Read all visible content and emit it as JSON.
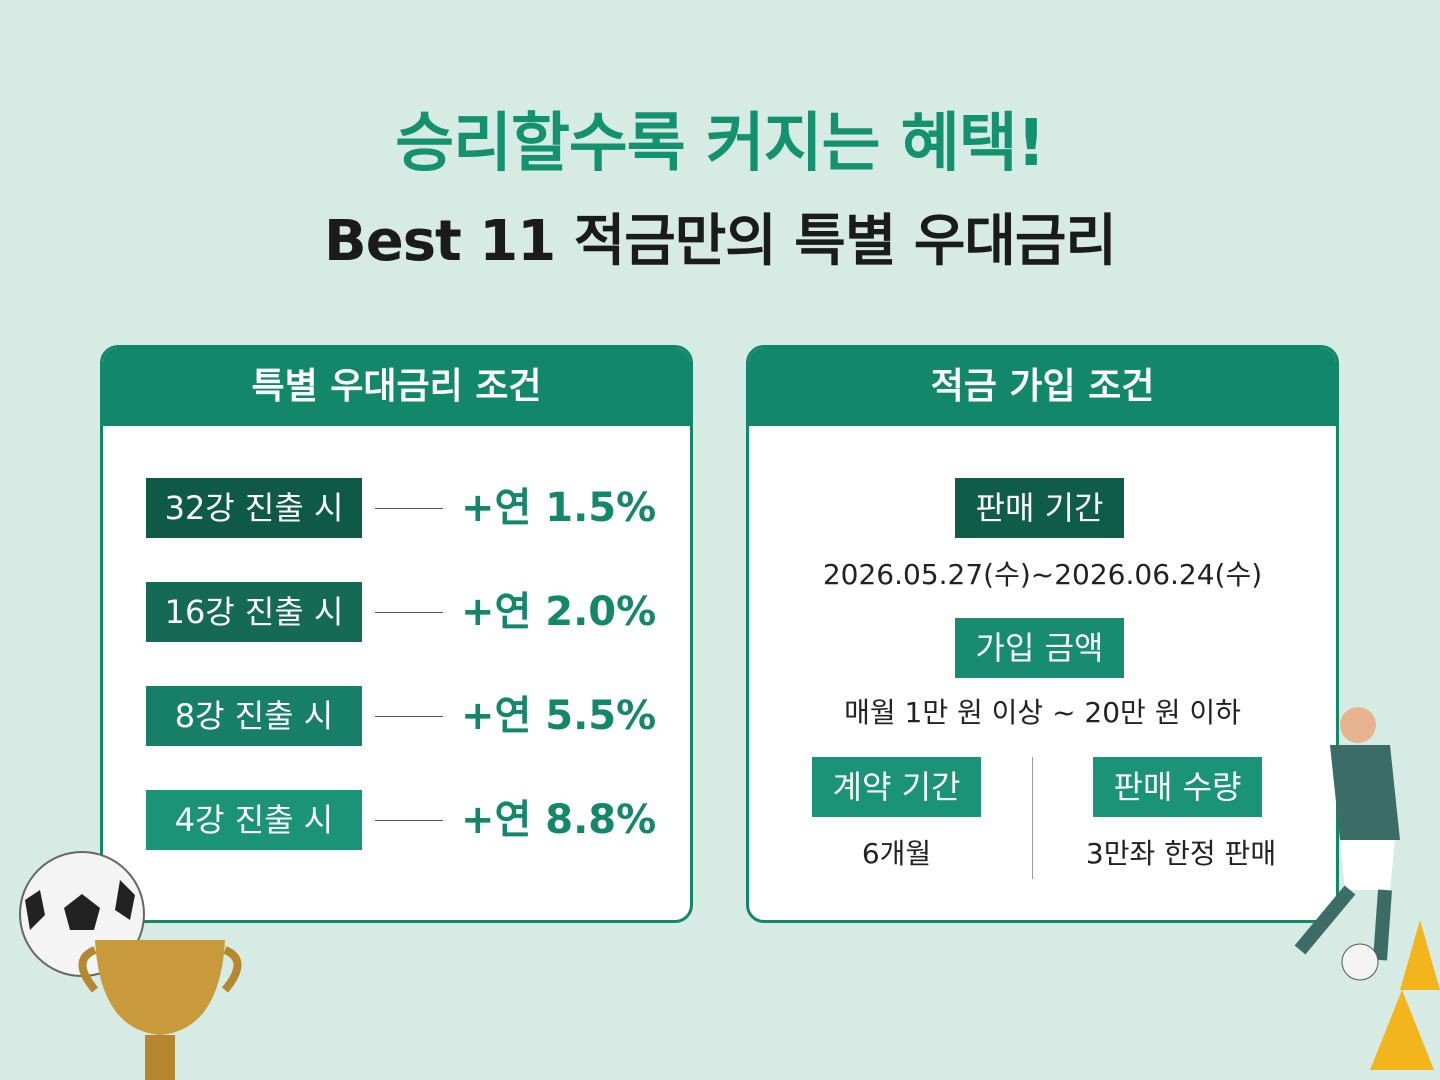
{
  "header": {
    "title": "승리할수록 커지는 혜택!",
    "subtitle": "Best 11 적금만의 특별 우대금리"
  },
  "left_card": {
    "title": "특별 우대금리 조건",
    "rows": [
      {
        "label": "32강 진출 시",
        "rate": "+연 1.5%"
      },
      {
        "label": "16강 진출 시",
        "rate": "+연 2.0%"
      },
      {
        "label": "8강 진출 시",
        "rate": "+연 5.5%"
      },
      {
        "label": "4강 진출 시",
        "rate": "+연 8.8%"
      }
    ]
  },
  "right_card": {
    "title": "적금 가입 조건",
    "sections": [
      {
        "label": "판매 기간",
        "text": "2026.05.27(수)~2026.06.24(수)"
      },
      {
        "label": "가입 금액",
        "text": "매월 1만 원 이상 ~ 20만 원 이하"
      },
      {
        "label": "계약 기간",
        "text": "6개월"
      },
      {
        "label": "판매 수량",
        "text": "3만좌 한정 판매"
      }
    ]
  }
}
